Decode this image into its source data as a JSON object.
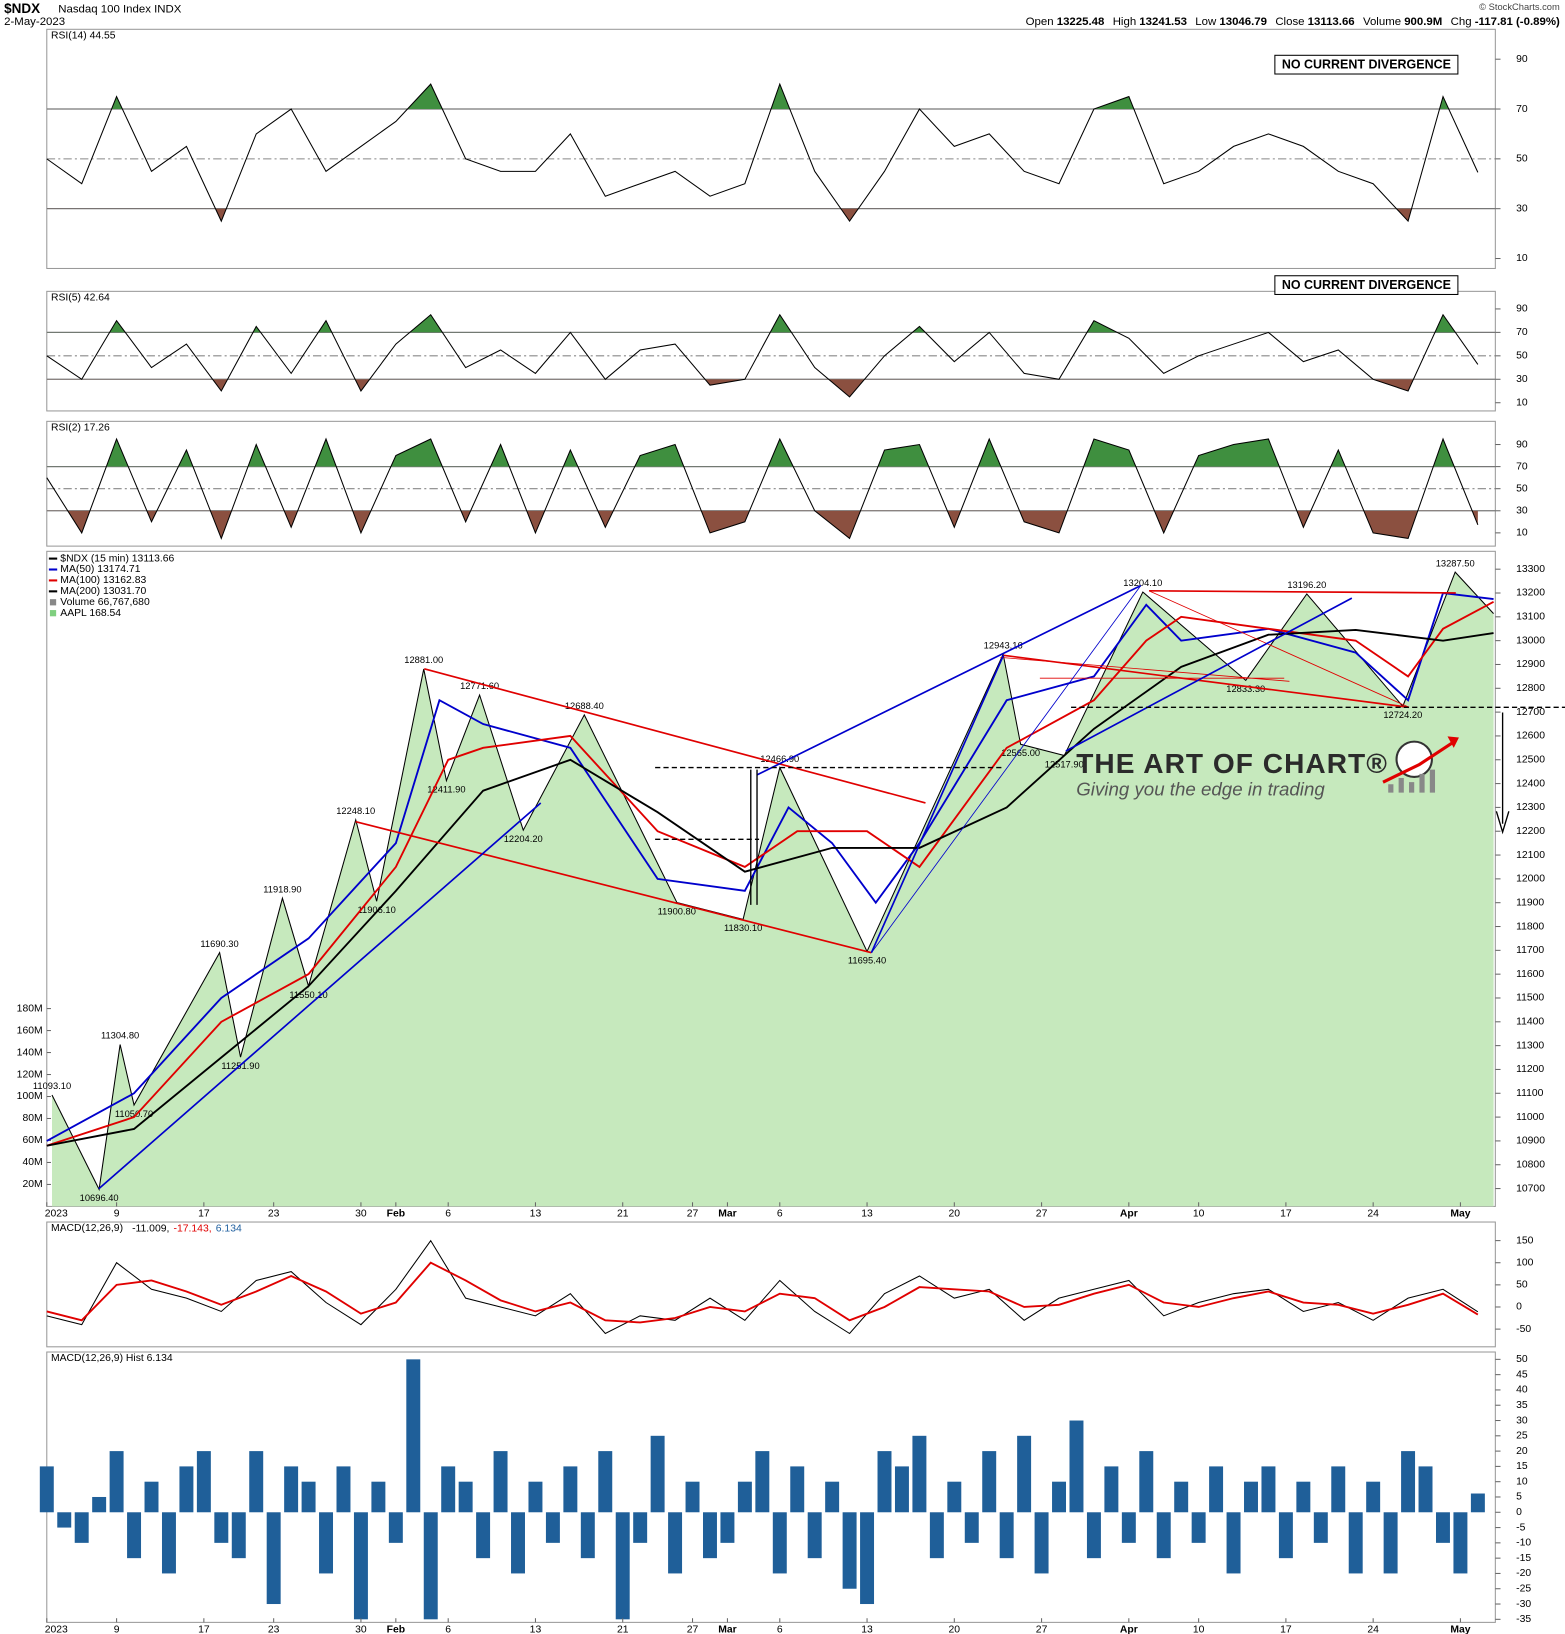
{
  "header": {
    "symbol": "$NDX",
    "name": "Nasdaq 100 Index INDX",
    "date": "2-May-2023",
    "quote": [
      {
        "label": "Open",
        "value": "13225.48"
      },
      {
        "label": "High",
        "value": "13241.53"
      },
      {
        "label": "Low",
        "value": "13046.79"
      },
      {
        "label": "Close",
        "value": "13113.66"
      },
      {
        "label": "Volume",
        "value": "900.9M"
      },
      {
        "label": "Chg",
        "value": "-117.81 (-0.89%)"
      }
    ],
    "credit": "© StockCharts.com"
  },
  "watermark": {
    "title": "THE ART OF CHART®",
    "tagline": "Giving you the edge in trading"
  },
  "chart_data": [
    {
      "type": "line",
      "title": "RSI(14) 44.55",
      "annotation": "NO CURRENT DIVERGENCE",
      "x": [
        0,
        2,
        4,
        6,
        8,
        10,
        12,
        14,
        16,
        18,
        20,
        22,
        24,
        26,
        28,
        30,
        32,
        34,
        36,
        38,
        40,
        42,
        44,
        46,
        48,
        50,
        52,
        54,
        56,
        58,
        60,
        62,
        64,
        66,
        68,
        70,
        72,
        74,
        76,
        78,
        80,
        82
      ],
      "values": [
        50,
        40,
        75,
        45,
        55,
        25,
        60,
        70,
        45,
        55,
        65,
        80,
        50,
        45,
        45,
        60,
        35,
        40,
        45,
        35,
        40,
        80,
        45,
        25,
        45,
        70,
        55,
        60,
        45,
        40,
        70,
        75,
        40,
        45,
        55,
        60,
        55,
        45,
        40,
        25,
        75,
        44.55
      ],
      "color": "#000000",
      "ob_color": "#3f8f3f",
      "os_color": "#8b5040",
      "xlim": [
        0,
        83
      ],
      "ylim": [
        6,
        102
      ],
      "yticks": [
        10,
        30,
        50,
        70,
        90
      ],
      "bands": [
        30,
        70
      ],
      "midline": 50
    },
    {
      "type": "line",
      "title": "RSI(5) 42.64",
      "annotation": "NO CURRENT DIVERGENCE",
      "x": [
        0,
        2,
        4,
        6,
        8,
        10,
        12,
        14,
        16,
        18,
        20,
        22,
        24,
        26,
        28,
        30,
        32,
        34,
        36,
        38,
        40,
        42,
        44,
        46,
        48,
        50,
        52,
        54,
        56,
        58,
        60,
        62,
        64,
        66,
        68,
        70,
        72,
        74,
        76,
        78,
        80,
        82
      ],
      "values": [
        50,
        30,
        80,
        40,
        60,
        20,
        75,
        35,
        80,
        20,
        60,
        85,
        40,
        55,
        35,
        70,
        30,
        55,
        60,
        25,
        30,
        85,
        40,
        15,
        50,
        75,
        45,
        70,
        35,
        30,
        80,
        65,
        35,
        50,
        60,
        70,
        45,
        55,
        30,
        20,
        85,
        42.64
      ],
      "color": "#000000",
      "ob_color": "#3f8f3f",
      "os_color": "#8b5040",
      "xlim": [
        0,
        83
      ],
      "ylim": [
        3,
        105
      ],
      "yticks": [
        10,
        30,
        50,
        70,
        90
      ],
      "bands": [
        30,
        70
      ],
      "midline": 50
    },
    {
      "type": "line",
      "title": "RSI(2) 17.26",
      "x": [
        0,
        2,
        4,
        6,
        8,
        10,
        12,
        14,
        16,
        18,
        20,
        22,
        24,
        26,
        28,
        30,
        32,
        34,
        36,
        38,
        40,
        42,
        44,
        46,
        48,
        50,
        52,
        54,
        56,
        58,
        60,
        62,
        64,
        66,
        68,
        70,
        72,
        74,
        76,
        78,
        80,
        82
      ],
      "values": [
        60,
        10,
        95,
        20,
        85,
        5,
        90,
        15,
        95,
        10,
        80,
        95,
        20,
        90,
        10,
        85,
        15,
        80,
        90,
        10,
        20,
        95,
        30,
        5,
        85,
        90,
        15,
        95,
        20,
        10,
        95,
        85,
        10,
        80,
        90,
        95,
        15,
        85,
        10,
        5,
        95,
        17.26
      ],
      "color": "#000000",
      "ob_color": "#3f8f3f",
      "os_color": "#8b5040",
      "xlim": [
        0,
        83
      ],
      "ylim": [
        -2,
        111
      ],
      "yticks": [
        10,
        30,
        50,
        70,
        90
      ],
      "bands": [
        30,
        70
      ],
      "midline": 50
    },
    {
      "type": "line",
      "series": [
        {
          "name": "$NDX (15 min) 13113.66",
          "color": "#000000",
          "area_color": "#c6e9bd",
          "x": [
            0.3,
            3,
            4.2,
            5,
            9.9,
            11.1,
            13.5,
            15,
            17.7,
            18.9,
            21.6,
            22.9,
            24.8,
            27.3,
            30.8,
            36.1,
            39.9,
            42,
            47,
            54.8,
            55.8,
            58.3,
            62.8,
            68.7,
            72.2,
            77.7,
            80.7,
            82.9
          ],
          "values": [
            11093.1,
            10696.4,
            11304.8,
            11050.7,
            11690.3,
            11251.9,
            11918.9,
            11550.1,
            12248.1,
            11906.1,
            12881,
            12411.9,
            12771.6,
            12204.2,
            12688.4,
            11900.8,
            11830.1,
            12466.9,
            11695.4,
            12943.16,
            12565,
            12517.9,
            13204.1,
            12833.3,
            13196.2,
            12724.2,
            13287.5,
            13113.66
          ],
          "value_labels": [
            "11093.10",
            "10696.40",
            "11304.80",
            "11050.70",
            "11690.30",
            "11251.90",
            "11918.90",
            "11550.10",
            "12248.10",
            "11906.10",
            "12881.00",
            "12411.90",
            "12771.60",
            "12204.20",
            "12688.40",
            "11900.80",
            "11830.10",
            "12466.90",
            "11695.40",
            "12943.16",
            "12565.00",
            "12517.90",
            "13204.10",
            "12833.30",
            "13196.20",
            "12724.20",
            "13287.50",
            null
          ]
        },
        {
          "name": "MA(50) 13174.71",
          "color": "#0000cc",
          "x": [
            0,
            5,
            10,
            15,
            20,
            22.5,
            25,
            30,
            35,
            40,
            42.5,
            45,
            47.5,
            50,
            55,
            60,
            63,
            65,
            70,
            75,
            78,
            80,
            82.9
          ],
          "values": [
            10900,
            11100,
            11500,
            11750,
            12150,
            12750,
            12650,
            12550,
            12000,
            11950,
            12300,
            12150,
            11900,
            12150,
            12750,
            12850,
            13150,
            13000,
            13050,
            12950,
            12750,
            13200,
            13174.71
          ]
        },
        {
          "name": "MA(100) 13162.83",
          "color": "#e00000",
          "x": [
            0,
            5,
            10,
            15,
            20,
            23,
            25,
            30,
            35,
            40,
            43,
            47,
            50,
            55,
            60,
            63,
            65,
            70,
            75,
            78,
            80,
            82.9
          ],
          "values": [
            10880,
            11000,
            11400,
            11600,
            12050,
            12500,
            12550,
            12600,
            12200,
            12050,
            12200,
            12200,
            12050,
            12550,
            12750,
            13000,
            13100,
            13050,
            13000,
            12850,
            13050,
            13162.83
          ]
        },
        {
          "name": "MA(200) 13031.70",
          "color": "#000000",
          "x": [
            0,
            5,
            10,
            15,
            20,
            25,
            30,
            35,
            40,
            45,
            50,
            55,
            60,
            65,
            70,
            75,
            80,
            82.9
          ],
          "values": [
            10880,
            10950,
            11250,
            11550,
            11950,
            12370,
            12500,
            12280,
            12030,
            12130,
            12130,
            12300,
            12630,
            12890,
            13025,
            13045,
            13000,
            13031.7
          ]
        }
      ],
      "volume": {
        "label": "Volume 66,767,680",
        "ylim": [
          0,
          596000000
        ],
        "yticks": [
          {
            "value": 20000000,
            "label": "20M"
          },
          {
            "value": 40000000,
            "label": "40M"
          },
          {
            "value": 60000000,
            "label": "60M"
          },
          {
            "value": 80000000,
            "label": "80M"
          },
          {
            "value": 100000000,
            "label": "100M"
          },
          {
            "value": 120000000,
            "label": "120M"
          },
          {
            "value": 140000000,
            "label": "140M"
          },
          {
            "value": 160000000,
            "label": "160M"
          },
          {
            "value": 180000000,
            "label": "180M"
          }
        ]
      },
      "overlay": {
        "name": "AAPL 168.54",
        "color": "#7fcf7f"
      },
      "xlim": [
        0,
        83
      ],
      "ylim": [
        10625,
        13375
      ],
      "yticks": [
        10700,
        10800,
        10900,
        11000,
        11100,
        11200,
        11300,
        11400,
        11500,
        11600,
        11700,
        11800,
        11900,
        12000,
        12100,
        12200,
        12300,
        12400,
        12500,
        12600,
        12700,
        12800,
        12900,
        13000,
        13100,
        13200,
        13300
      ],
      "xticks": [
        {
          "value": 0,
          "label": "2023"
        },
        {
          "value": 4,
          "label": "9"
        },
        {
          "value": 9,
          "label": "17"
        },
        {
          "value": 13,
          "label": "23"
        },
        {
          "value": 18,
          "label": "30"
        },
        {
          "value": 20,
          "label": "Feb"
        },
        {
          "value": 23,
          "label": "6"
        },
        {
          "value": 28,
          "label": "13"
        },
        {
          "value": 33,
          "label": "21"
        },
        {
          "value": 37,
          "label": "27"
        },
        {
          "value": 39,
          "label": "Mar"
        },
        {
          "value": 42,
          "label": "6"
        },
        {
          "value": 47,
          "label": "13"
        },
        {
          "value": 52,
          "label": "20"
        },
        {
          "value": 57,
          "label": "27"
        },
        {
          "value": 62,
          "label": "Apr"
        },
        {
          "value": 66,
          "label": "10"
        },
        {
          "value": 71,
          "label": "17"
        },
        {
          "value": 76,
          "label": "24"
        },
        {
          "value": 81,
          "label": "May"
        }
      ]
    },
    {
      "type": "line",
      "title": "MACD(12,26,9)",
      "legend_values": [
        "-11.009,",
        "-17.143,",
        "6.134"
      ],
      "legend_colors": [
        "#000000",
        "#e00000",
        "#2060a0"
      ],
      "x": [
        0,
        2,
        4,
        6,
        8,
        10,
        12,
        14,
        16,
        18,
        20,
        22,
        24,
        26,
        28,
        30,
        32,
        34,
        36,
        38,
        40,
        42,
        44,
        46,
        48,
        50,
        52,
        54,
        56,
        58,
        60,
        62,
        64,
        66,
        68,
        70,
        72,
        74,
        76,
        78,
        80,
        82
      ],
      "series": [
        {
          "color": "#000000",
          "values": [
            -20,
            -40,
            100,
            40,
            20,
            -10,
            60,
            80,
            10,
            -40,
            40,
            150,
            20,
            0,
            -20,
            30,
            -60,
            -20,
            -30,
            20,
            -30,
            60,
            -10,
            -60,
            30,
            70,
            20,
            40,
            -30,
            20,
            40,
            60,
            -20,
            10,
            30,
            40,
            -10,
            10,
            -30,
            20,
            40,
            -11.009
          ]
        },
        {
          "color": "#e00000",
          "values": [
            -10,
            -30,
            50,
            60,
            35,
            5,
            35,
            70,
            35,
            -15,
            10,
            100,
            60,
            15,
            -10,
            10,
            -30,
            -35,
            -25,
            0,
            -10,
            30,
            20,
            -30,
            0,
            45,
            40,
            35,
            0,
            5,
            30,
            50,
            10,
            0,
            20,
            35,
            10,
            5,
            -15,
            5,
            30,
            -17.143
          ]
        }
      ],
      "xlim": [
        0,
        83
      ],
      "ylim": [
        -90,
        192
      ],
      "yticks": [
        -50,
        0,
        50,
        100,
        150
      ]
    },
    {
      "type": "bar",
      "title": "MACD(12,26,9) Hist 6.134",
      "color": "#1f5f99",
      "x": [
        0,
        1,
        2,
        3,
        4,
        5,
        6,
        7,
        8,
        9,
        10,
        11,
        12,
        13,
        14,
        15,
        16,
        17,
        18,
        19,
        20,
        21,
        22,
        23,
        24,
        25,
        26,
        27,
        28,
        29,
        30,
        31,
        32,
        33,
        34,
        35,
        36,
        37,
        38,
        39,
        40,
        41,
        42,
        43,
        44,
        45,
        46,
        47,
        48,
        49,
        50,
        51,
        52,
        53,
        54,
        55,
        56,
        57,
        58,
        59,
        60,
        61,
        62,
        63,
        64,
        65,
        66,
        67,
        68,
        69,
        70,
        71,
        72,
        73,
        74,
        75,
        76,
        77,
        78,
        79,
        80,
        81,
        82
      ],
      "values": [
        15,
        -5,
        -10,
        5,
        20,
        -15,
        10,
        -20,
        15,
        20,
        -10,
        -15,
        20,
        -30,
        15,
        10,
        -20,
        15,
        -35,
        10,
        -10,
        50,
        -35,
        15,
        10,
        -15,
        20,
        -20,
        10,
        -10,
        15,
        -15,
        20,
        -35,
        -10,
        25,
        -20,
        10,
        -15,
        -10,
        10,
        20,
        -20,
        15,
        -15,
        10,
        -25,
        -30,
        20,
        15,
        25,
        -15,
        10,
        -10,
        20,
        -15,
        25,
        -20,
        10,
        30,
        -15,
        15,
        -10,
        20,
        -15,
        10,
        -10,
        15,
        -20,
        10,
        15,
        -15,
        10,
        -10,
        15,
        -20,
        10,
        -20,
        20,
        15,
        -10,
        -20,
        6.134
      ],
      "xlim": [
        0,
        83
      ],
      "ylim": [
        -36,
        52.4
      ],
      "yticks": [
        -35,
        -30,
        -25,
        -20,
        -15,
        -10,
        -5,
        0,
        5,
        10,
        15,
        20,
        25,
        30,
        35,
        40,
        45,
        50
      ],
      "xticks": [
        {
          "value": 0,
          "label": "2023"
        },
        {
          "value": 4,
          "label": "9"
        },
        {
          "value": 9,
          "label": "17"
        },
        {
          "value": 13,
          "label": "23"
        },
        {
          "value": 18,
          "label": "30"
        },
        {
          "value": 20,
          "label": "Feb"
        },
        {
          "value": 23,
          "label": "6"
        },
        {
          "value": 28,
          "label": "13"
        },
        {
          "value": 33,
          "label": "21"
        },
        {
          "value": 37,
          "label": "27"
        },
        {
          "value": 39,
          "label": "Mar"
        },
        {
          "value": 42,
          "label": "6"
        },
        {
          "value": 47,
          "label": "13"
        },
        {
          "value": 52,
          "label": "20"
        },
        {
          "value": 57,
          "label": "27"
        },
        {
          "value": 62,
          "label": "Apr"
        },
        {
          "value": 66,
          "label": "10"
        },
        {
          "value": 71,
          "label": "17"
        },
        {
          "value": 76,
          "label": "24"
        },
        {
          "value": 81,
          "label": "May"
        }
      ]
    }
  ]
}
